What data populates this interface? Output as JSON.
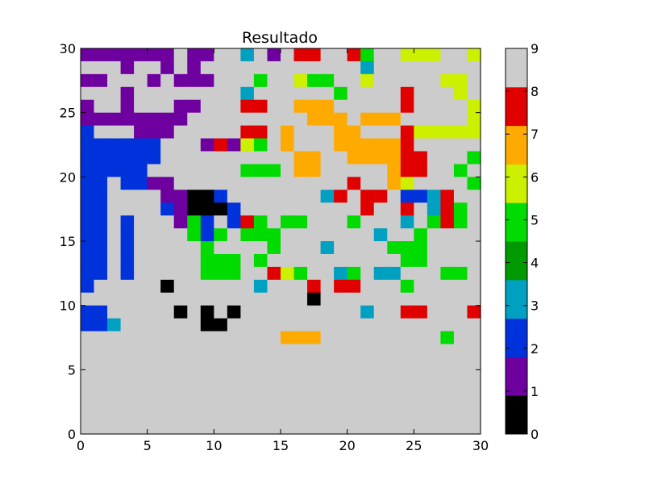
{
  "chart_data": {
    "type": "heatmap",
    "title": "Resultado",
    "xlabel": "",
    "ylabel": "",
    "xlim": [
      0,
      30
    ],
    "ylim": [
      0,
      30
    ],
    "xticks": [
      0,
      5,
      10,
      15,
      20,
      25,
      30
    ],
    "yticks": [
      0,
      5,
      10,
      15,
      20,
      25,
      30
    ],
    "grid": false,
    "colorbar": {
      "ticks": [
        0,
        1,
        2,
        3,
        4,
        5,
        6,
        7,
        8,
        9
      ],
      "colors": [
        "#000000",
        "#6e00a0",
        "#0032dc",
        "#00a0c0",
        "#009a00",
        "#00dc00",
        "#ccf000",
        "#ffaa00",
        "#e00000",
        "#cccccc"
      ]
    },
    "rows_top_to_bottom": [
      "111111191199391988998599666996666",
      "999199191999999999999399999999",
      "119991911199959965599699999669",
      "999199999999399999959999899969",
      "199199911999889977799999899996",
      "111111119999999997779777999996",
      "299911199999889799977999866666",
      "222222999181659799977777899999",
      "222222999999999977997777889995",
      "222229999999555977999997889959",
      "229221199999999999998997699995",
      "229999110029999999389889223899",
      "229999210002999999999899893859",
      "229299915292859559995999395859",
      "229299995259555999999939959999",
      "229299999599995999399995559999",
      "229299999555959999999999559999",
      "229299999555998659935933999559",
      "299999099999939998988999599999",
      "999999999999999990999999999999",
      "229999909090999999999399889998",
      "223999999009999999999999999999",
      "999999999999999777999999999599"
    ]
  }
}
